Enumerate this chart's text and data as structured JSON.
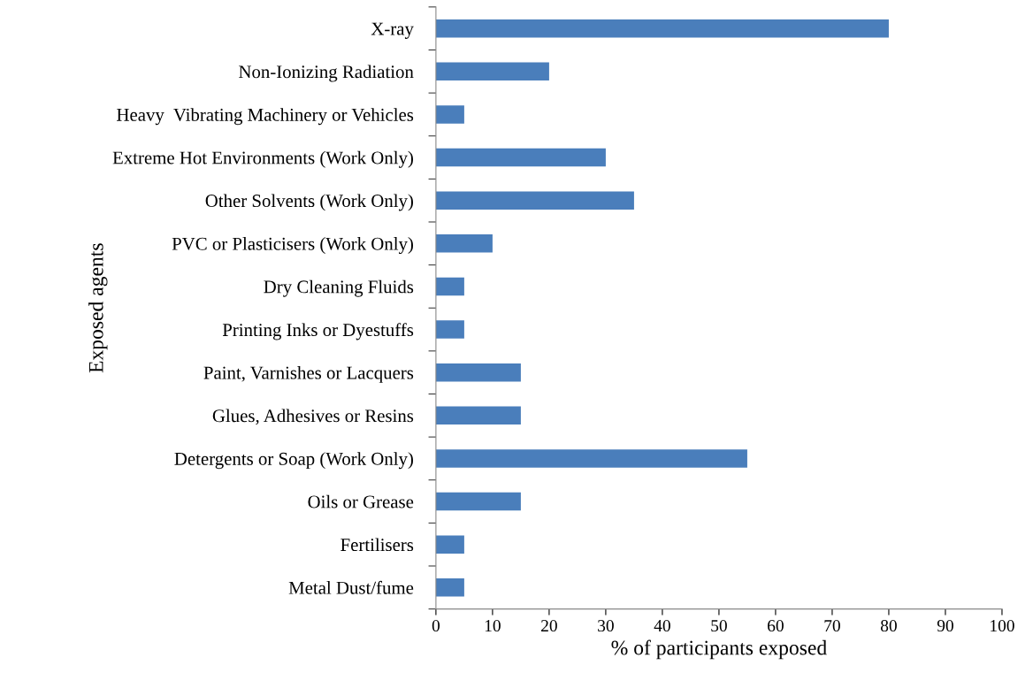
{
  "chart_data": {
    "type": "bar",
    "orientation": "horizontal",
    "xlabel": "% of participants exposed",
    "ylabel": "Exposed agents",
    "categories": [
      "X-ray",
      "Non-Ionizing Radiation",
      "Heavy  Vibrating Machinery or Vehicles",
      "Extreme Hot Environments (Work Only)",
      "Other Solvents (Work Only)",
      "PVC or Plasticisers (Work Only)",
      "Dry Cleaning Fluids",
      "Printing Inks or Dyestuffs",
      "Paint, Varnishes or Lacquers",
      "Glues, Adhesives or Resins",
      "Detergents or Soap (Work Only)",
      "Oils or Grease",
      "Fertilisers",
      "Metal Dust/fume"
    ],
    "values": [
      80,
      20,
      5,
      30,
      35,
      10,
      5,
      5,
      15,
      15,
      55,
      15,
      5,
      5
    ],
    "color": "#4a7ebb",
    "xlim": [
      0,
      100
    ],
    "xticks": [
      0,
      10,
      20,
      30,
      40,
      50,
      60,
      70,
      80,
      90,
      100
    ],
    "grid": false,
    "legend": false
  }
}
